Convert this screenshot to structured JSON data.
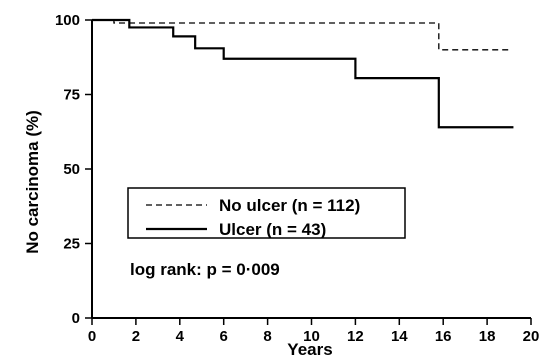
{
  "chart_data": {
    "type": "line",
    "xlabel": "Years",
    "ylabel": "No carcinoma (%)",
    "xlim": [
      0,
      20
    ],
    "ylim": [
      0,
      100
    ],
    "xticks": [
      0,
      2,
      4,
      6,
      8,
      10,
      12,
      14,
      16,
      18,
      20
    ],
    "yticks": [
      0,
      25,
      50,
      75,
      100
    ],
    "step": true,
    "grid": false,
    "legend_position": "lower-left",
    "series": [
      {
        "name": "No ulcer (n = 112)",
        "line_style": "dashed",
        "color": "#000000",
        "x": [
          0,
          1.0,
          15.8,
          15.8,
          19.0
        ],
        "y": [
          100,
          99,
          99,
          90,
          90
        ]
      },
      {
        "name": "Ulcer (n = 43)",
        "line_style": "solid",
        "color": "#000000",
        "x": [
          0,
          1.7,
          3.7,
          4.7,
          6.0,
          12.0,
          15.8,
          19.2
        ],
        "y": [
          100,
          97.5,
          94.5,
          90.5,
          87,
          80.5,
          64,
          64
        ]
      }
    ],
    "annotation": "log rank: p = 0·009"
  }
}
